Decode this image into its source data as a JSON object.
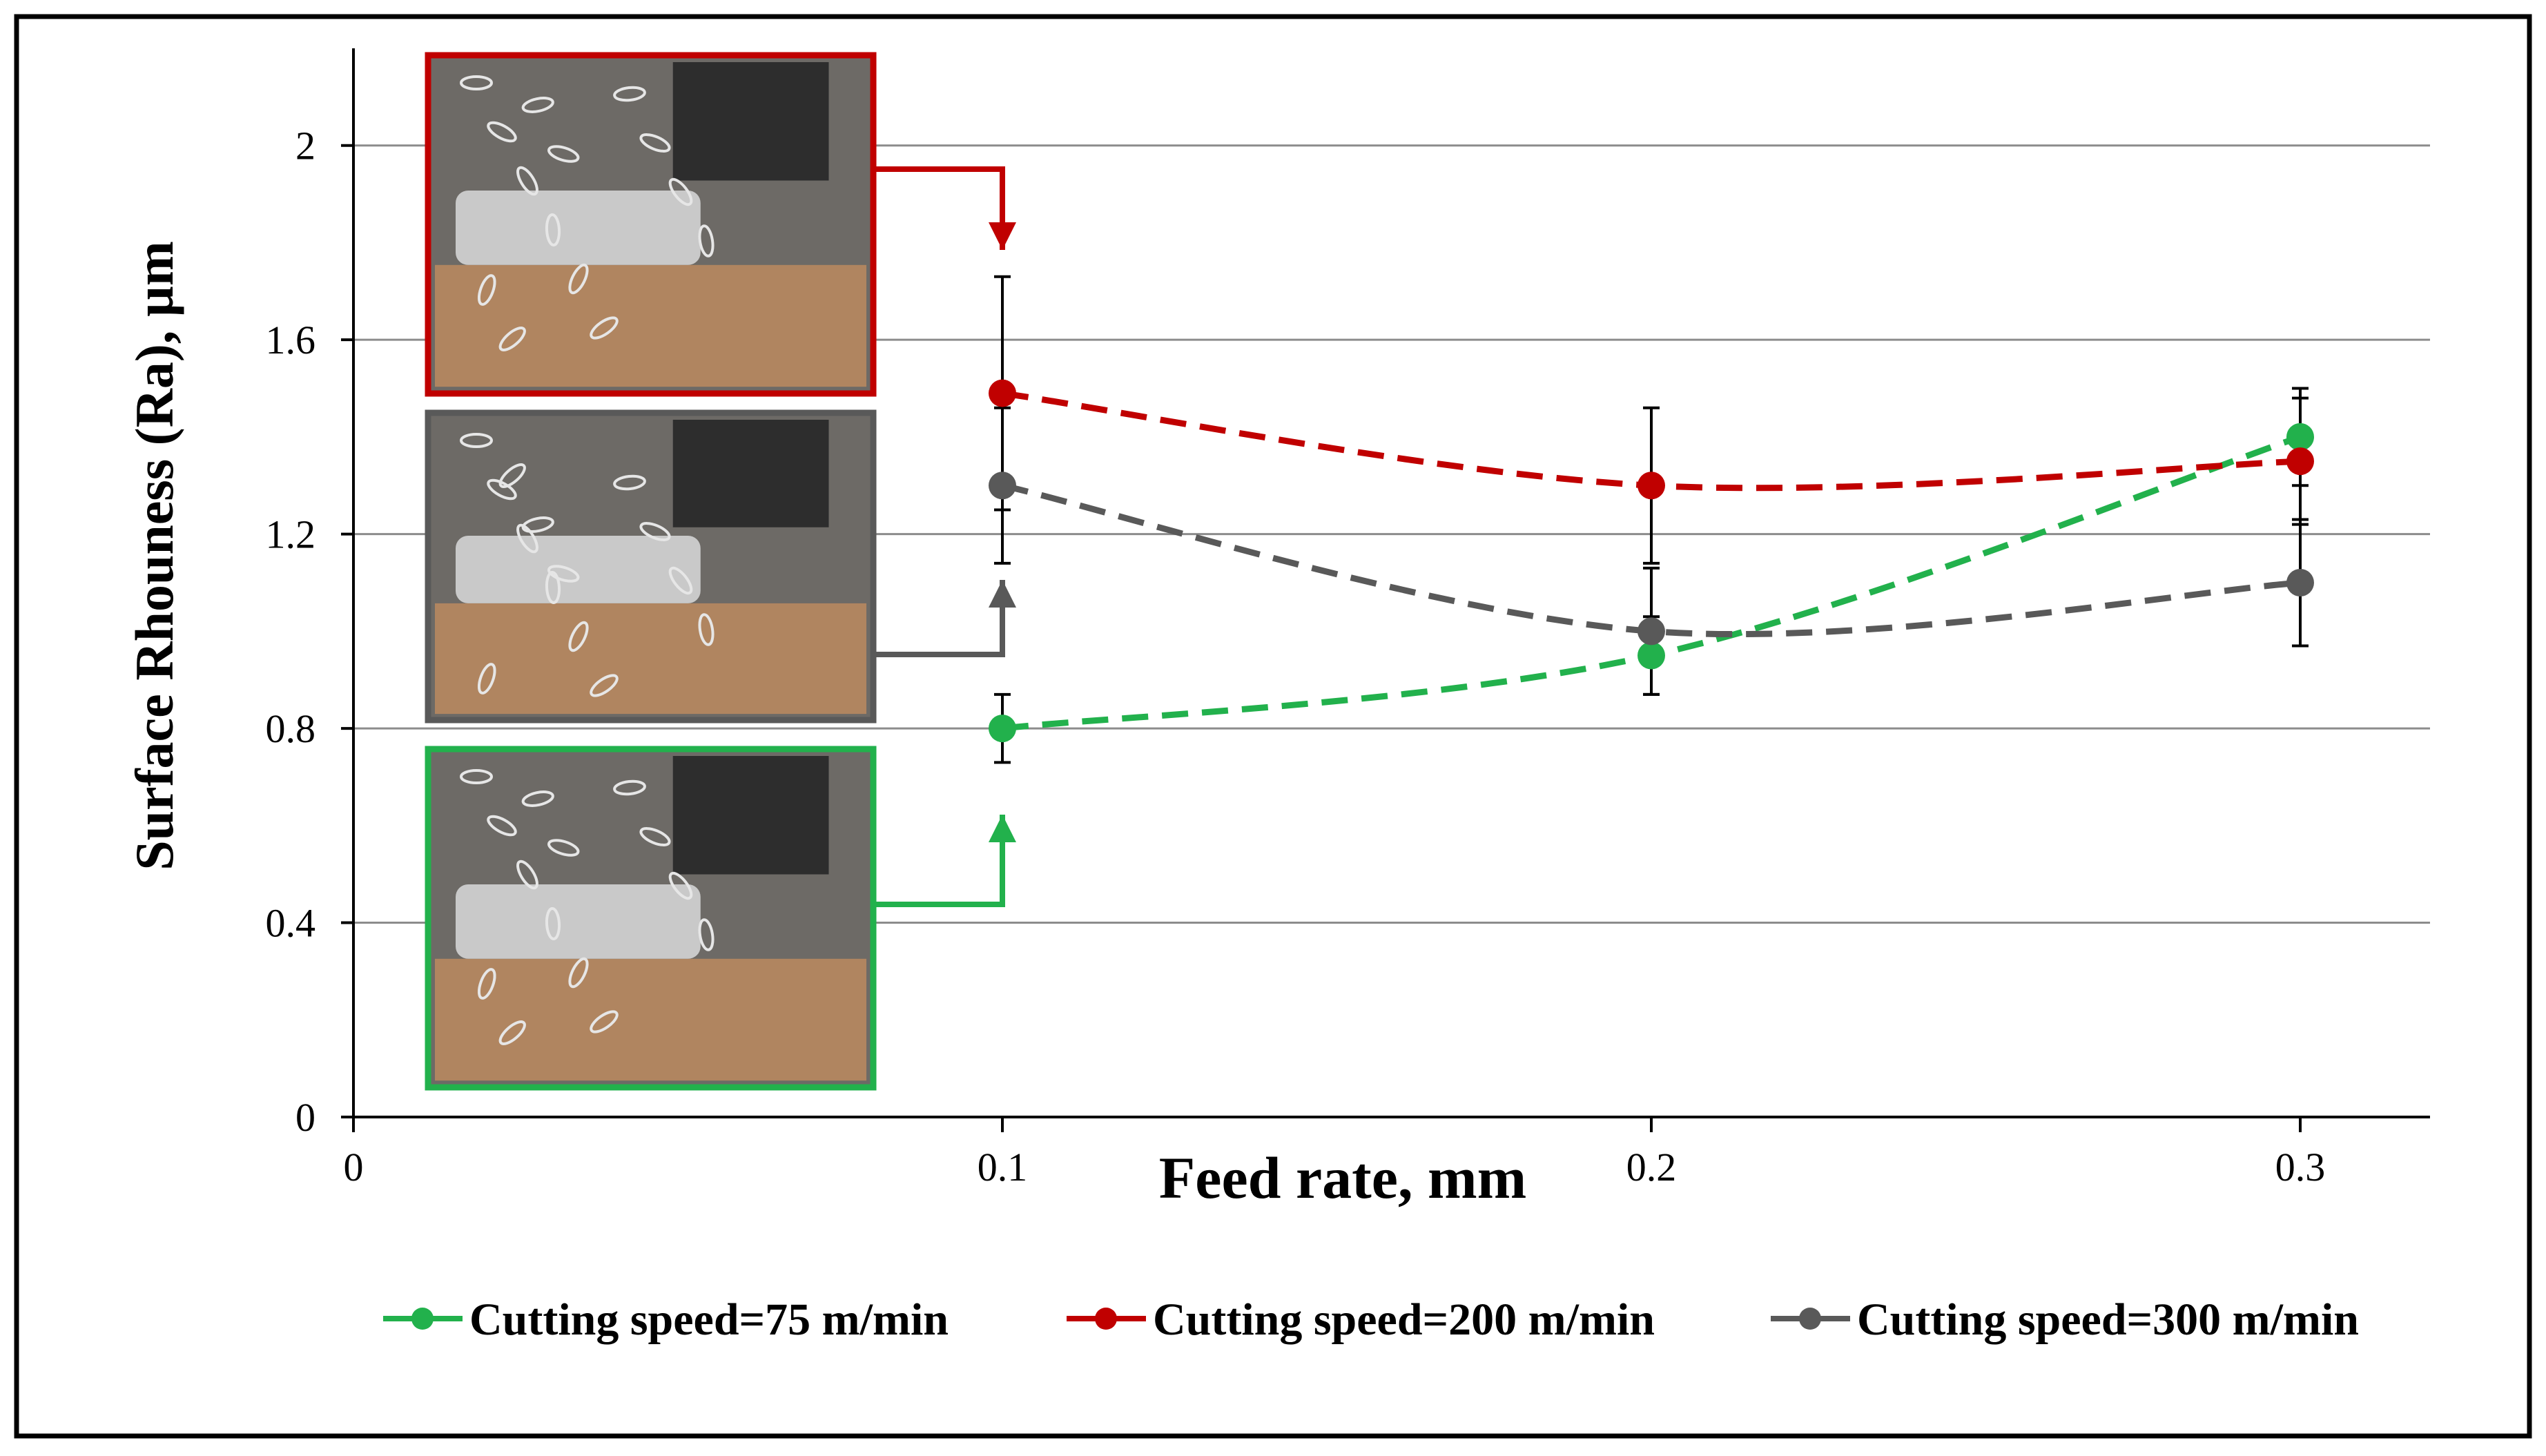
{
  "chart_data": {
    "type": "line",
    "title": "",
    "xlabel": "Feed rate, mm",
    "ylabel": "Surface Rhouness (Ra), µm",
    "xlim": [
      0,
      0.32
    ],
    "ylim": [
      0,
      2.2
    ],
    "x_ticks": [
      "0",
      "0.1",
      "0.2",
      "0.3"
    ],
    "y_ticks": [
      "0",
      "0.4",
      "0.8",
      "1.2",
      "1.6",
      "2"
    ],
    "grid": "horizontal",
    "legend_position": "bottom",
    "line_style": "dashed",
    "x": [
      0.1,
      0.2,
      0.3
    ],
    "series": [
      {
        "name": "Cutting speed=75 m/min",
        "color": "#22b14c",
        "values": [
          0.8,
          0.95,
          1.4
        ],
        "error": [
          0.07,
          0.08,
          0.1
        ]
      },
      {
        "name": "Cutting speed=200 m/min",
        "color": "#c00000",
        "values": [
          1.49,
          1.3,
          1.35
        ],
        "error": [
          0.24,
          0.16,
          0.13
        ]
      },
      {
        "name": "Cutting speed=300 m/min",
        "color": "#595959",
        "values": [
          1.3,
          1.0,
          1.1
        ],
        "error": [
          0.16,
          0.13,
          0.13
        ]
      }
    ],
    "insets": [
      {
        "name": "chip-photo-200",
        "frame_color": "#c00000",
        "points_to_x": 0.1
      },
      {
        "name": "chip-photo-300",
        "frame_color": "#595959",
        "points_to_x": 0.1
      },
      {
        "name": "chip-photo-75",
        "frame_color": "#22b14c",
        "points_to_x": 0.1
      }
    ]
  }
}
